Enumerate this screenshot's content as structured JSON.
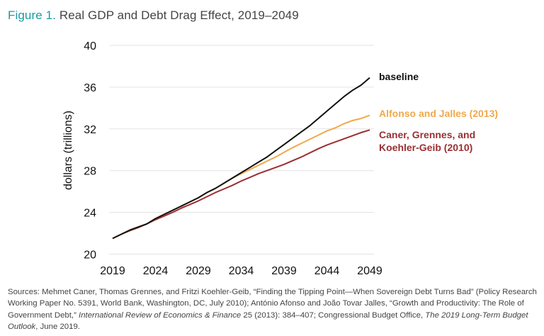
{
  "title": {
    "figure_label": "Figure 1.",
    "text": "Real GDP and Debt Drag Effect, 2019–2049"
  },
  "chart_data": {
    "type": "line",
    "title": "Real GDP and Debt Drag Effect, 2019–2049",
    "xlabel": "",
    "ylabel": "dollars (trillions)",
    "xlim": [
      2019,
      2049
    ],
    "ylim": [
      20,
      40
    ],
    "x_ticks": [
      2019,
      2024,
      2029,
      2034,
      2039,
      2044,
      2049
    ],
    "y_ticks": [
      20,
      24,
      28,
      32,
      36,
      40
    ],
    "grid": "horizontal",
    "legend": "direct labels at line ends (right)",
    "x": [
      2019,
      2020,
      2021,
      2022,
      2023,
      2024,
      2025,
      2026,
      2027,
      2028,
      2029,
      2030,
      2031,
      2032,
      2033,
      2034,
      2035,
      2036,
      2037,
      2038,
      2039,
      2040,
      2041,
      2042,
      2043,
      2044,
      2045,
      2046,
      2047,
      2048,
      2049
    ],
    "series": [
      {
        "name": "baseline",
        "color": "#111111",
        "values": [
          21.5,
          21.9,
          22.3,
          22.6,
          22.9,
          23.4,
          23.8,
          24.2,
          24.6,
          25.0,
          25.4,
          25.9,
          26.3,
          26.8,
          27.3,
          27.8,
          28.3,
          28.8,
          29.3,
          29.9,
          30.5,
          31.1,
          31.7,
          32.3,
          33.0,
          33.7,
          34.4,
          35.1,
          35.7,
          36.2,
          36.9
        ]
      },
      {
        "name": "Alfonso and Jalles (2013)",
        "color": "#f0a94a",
        "values": [
          21.5,
          21.9,
          22.3,
          22.6,
          22.9,
          23.4,
          23.8,
          24.2,
          24.6,
          25.0,
          25.4,
          25.9,
          26.3,
          26.8,
          27.3,
          27.7,
          28.1,
          28.5,
          28.9,
          29.3,
          29.75,
          30.2,
          30.6,
          31.0,
          31.4,
          31.8,
          32.1,
          32.5,
          32.8,
          33.0,
          33.3
        ]
      },
      {
        "name": "Caner, Grennes, and Koehler-Geib (2010)",
        "label_lines": [
          "Caner, Grennes, and",
          "Koehler-Geib (2010)"
        ],
        "color": "#9b2f32",
        "values": [
          21.5,
          21.9,
          22.25,
          22.55,
          22.9,
          23.3,
          23.65,
          24.0,
          24.4,
          24.75,
          25.1,
          25.5,
          25.9,
          26.25,
          26.6,
          27.0,
          27.35,
          27.7,
          28.0,
          28.3,
          28.6,
          28.95,
          29.3,
          29.7,
          30.1,
          30.45,
          30.75,
          31.05,
          31.35,
          31.65,
          31.9
        ]
      }
    ]
  },
  "sources": [
    {
      "text": "Sources: Mehmet Caner, Thomas Grennes, and Fritzi Koehler-Geib, “Finding the Tipping Point—When Sovereign Debt Turns Bad” (Policy Research Working Paper No. 5391, World Bank, Washington, DC, July 2010); António Afonso and João Tovar Jalles, “Growth and Productivity: The Role of Government Debt,” ",
      "italic": false
    },
    {
      "text": "International Review of Economics & Finance",
      "italic": true
    },
    {
      "text": " 25 (2013): 384–407; Congressional Budget Office, ",
      "italic": false
    },
    {
      "text": "The 2019 Long-Term Budget Outlook",
      "italic": true
    },
    {
      "text": ", June 2019.",
      "italic": false
    }
  ]
}
